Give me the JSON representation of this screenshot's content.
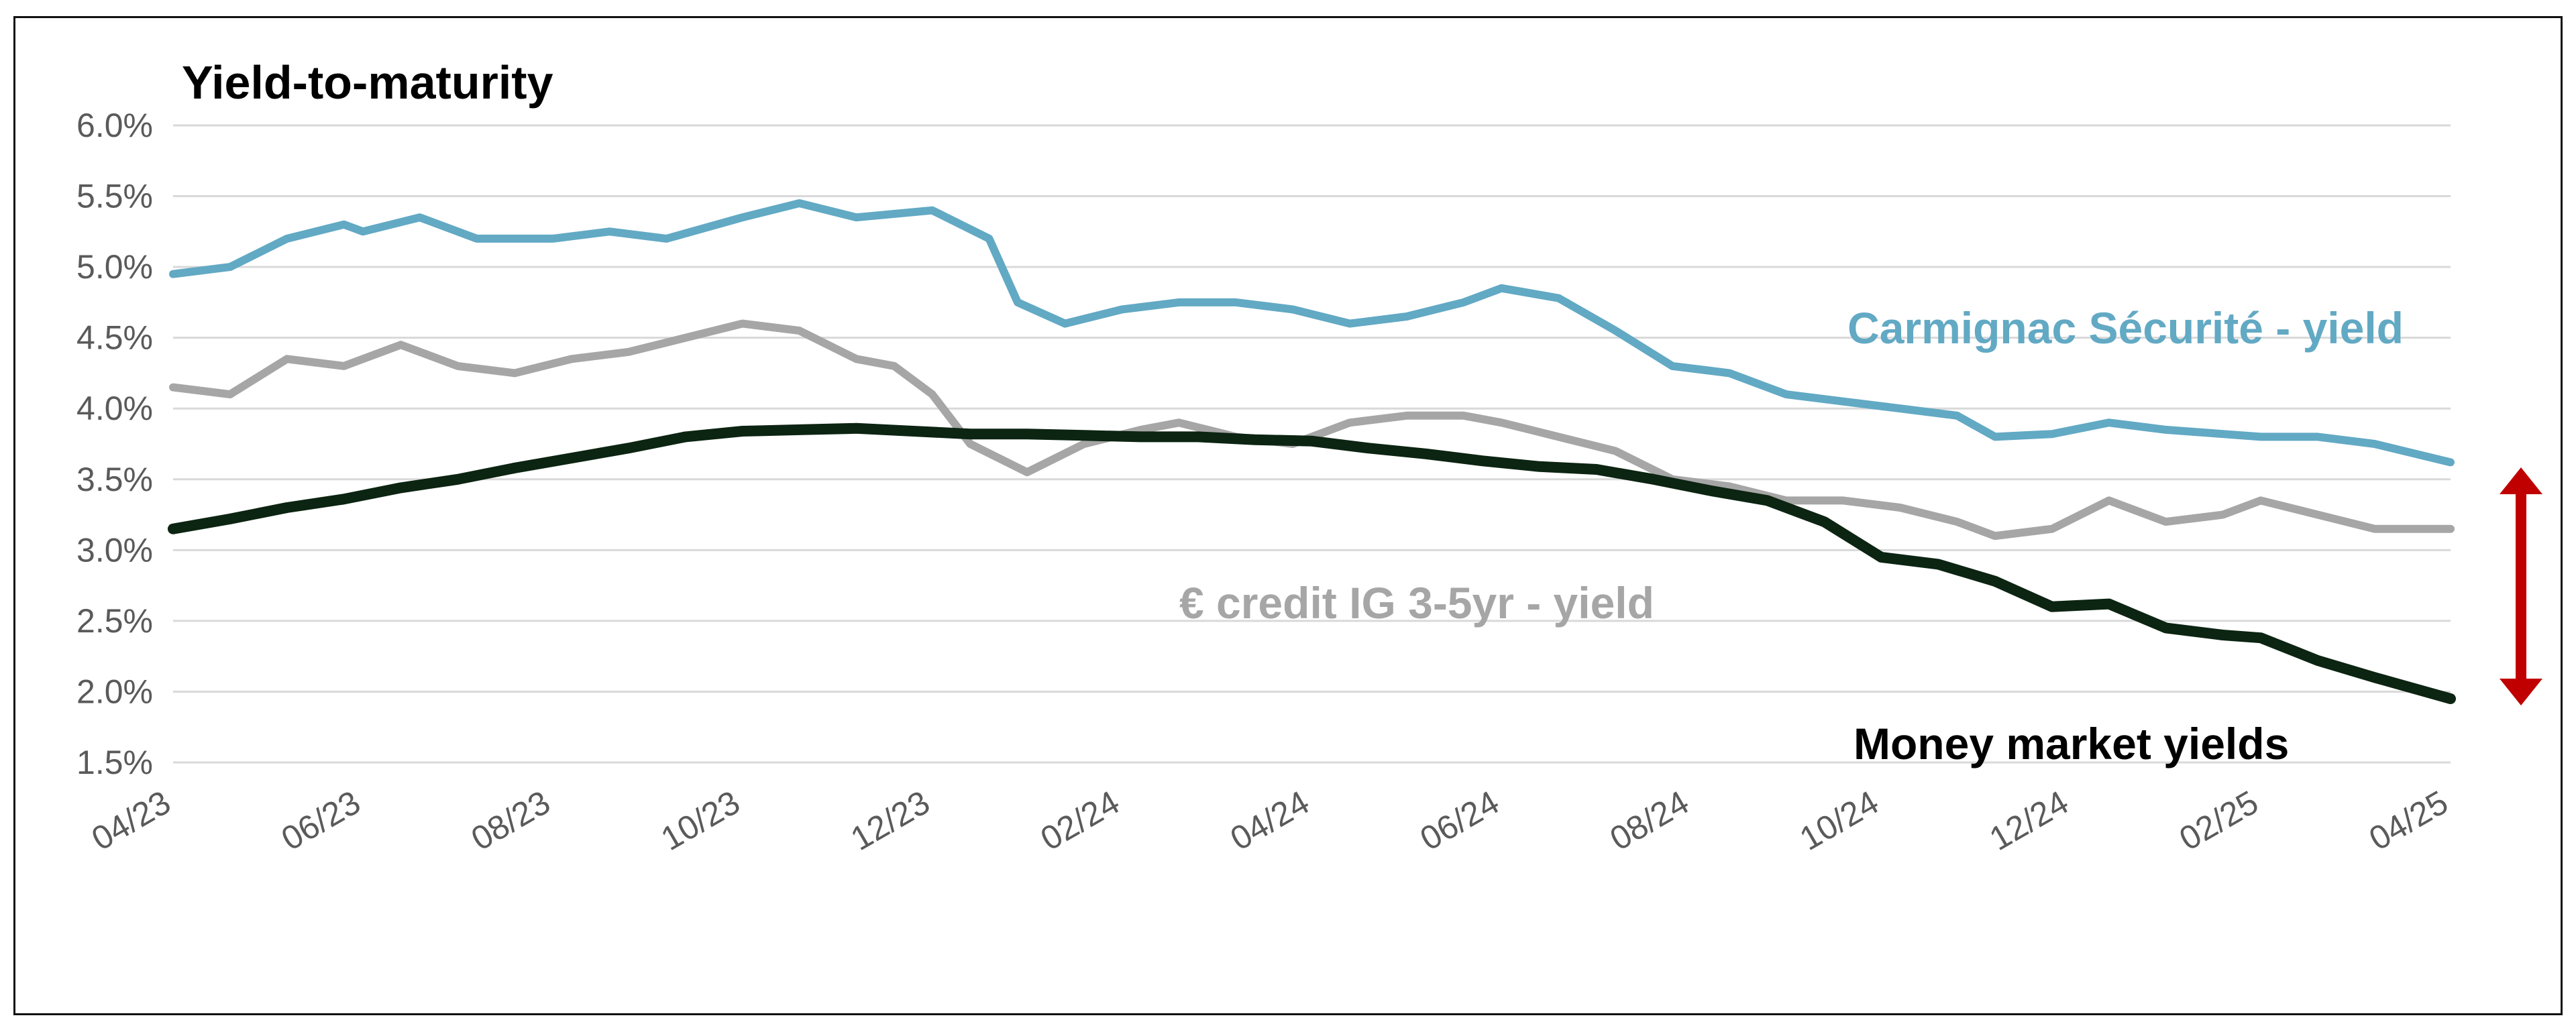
{
  "chart_data": {
    "type": "line",
    "title": "Yield-to-maturity",
    "ylim": [
      1.5,
      6.0
    ],
    "y_ticks": [
      "6.0%",
      "5.5%",
      "5.0%",
      "4.5%",
      "4.0%",
      "3.5%",
      "3.0%",
      "2.5%",
      "2.0%",
      "1.5%"
    ],
    "x_ticks": [
      "04/23",
      "06/23",
      "08/23",
      "10/23",
      "12/23",
      "02/24",
      "04/24",
      "06/24",
      "08/24",
      "10/24",
      "12/24",
      "02/25",
      "04/25"
    ],
    "grid": true,
    "series": [
      {
        "name": "Carmignac Sécurité - yield",
        "color": "#62a9c4",
        "points": [
          [
            0,
            4.95
          ],
          [
            0.3,
            5.0
          ],
          [
            0.6,
            5.2
          ],
          [
            0.9,
            5.3
          ],
          [
            1.0,
            5.25
          ],
          [
            1.3,
            5.35
          ],
          [
            1.6,
            5.2
          ],
          [
            2.0,
            5.2
          ],
          [
            2.3,
            5.25
          ],
          [
            2.6,
            5.2
          ],
          [
            3.0,
            5.35
          ],
          [
            3.3,
            5.45
          ],
          [
            3.6,
            5.35
          ],
          [
            4.0,
            5.4
          ],
          [
            4.3,
            5.2
          ],
          [
            4.45,
            4.75
          ],
          [
            4.7,
            4.6
          ],
          [
            5.0,
            4.7
          ],
          [
            5.3,
            4.75
          ],
          [
            5.6,
            4.75
          ],
          [
            5.9,
            4.7
          ],
          [
            6.2,
            4.6
          ],
          [
            6.5,
            4.65
          ],
          [
            6.8,
            4.75
          ],
          [
            7.0,
            4.85
          ],
          [
            7.3,
            4.78
          ],
          [
            7.6,
            4.55
          ],
          [
            7.9,
            4.3
          ],
          [
            8.2,
            4.25
          ],
          [
            8.5,
            4.1
          ],
          [
            8.8,
            4.05
          ],
          [
            9.1,
            4.0
          ],
          [
            9.4,
            3.95
          ],
          [
            9.6,
            3.8
          ],
          [
            9.9,
            3.82
          ],
          [
            10.2,
            3.9
          ],
          [
            10.5,
            3.85
          ],
          [
            10.8,
            3.82
          ],
          [
            11.0,
            3.8
          ],
          [
            11.3,
            3.8
          ],
          [
            11.6,
            3.75
          ],
          [
            12.0,
            3.62
          ]
        ]
      },
      {
        "name": "€ credit IG 3-5yr - yield",
        "color": "#a6a6a6",
        "points": [
          [
            0,
            4.15
          ],
          [
            0.3,
            4.1
          ],
          [
            0.6,
            4.35
          ],
          [
            0.9,
            4.3
          ],
          [
            1.2,
            4.45
          ],
          [
            1.5,
            4.3
          ],
          [
            1.8,
            4.25
          ],
          [
            2.1,
            4.35
          ],
          [
            2.4,
            4.4
          ],
          [
            2.7,
            4.5
          ],
          [
            3.0,
            4.6
          ],
          [
            3.3,
            4.55
          ],
          [
            3.6,
            4.35
          ],
          [
            3.8,
            4.3
          ],
          [
            4.0,
            4.1
          ],
          [
            4.2,
            3.75
          ],
          [
            4.5,
            3.55
          ],
          [
            4.8,
            3.75
          ],
          [
            5.1,
            3.85
          ],
          [
            5.3,
            3.9
          ],
          [
            5.6,
            3.8
          ],
          [
            5.9,
            3.75
          ],
          [
            6.2,
            3.9
          ],
          [
            6.5,
            3.95
          ],
          [
            6.8,
            3.95
          ],
          [
            7.0,
            3.9
          ],
          [
            7.3,
            3.8
          ],
          [
            7.6,
            3.7
          ],
          [
            7.9,
            3.5
          ],
          [
            8.2,
            3.45
          ],
          [
            8.5,
            3.35
          ],
          [
            8.8,
            3.35
          ],
          [
            9.1,
            3.3
          ],
          [
            9.4,
            3.2
          ],
          [
            9.6,
            3.1
          ],
          [
            9.9,
            3.15
          ],
          [
            10.2,
            3.35
          ],
          [
            10.5,
            3.2
          ],
          [
            10.8,
            3.25
          ],
          [
            11.0,
            3.35
          ],
          [
            11.3,
            3.25
          ],
          [
            11.6,
            3.15
          ],
          [
            12.0,
            3.15
          ]
        ]
      },
      {
        "name": "Money market yields",
        "color": "#0c2412",
        "points": [
          [
            0,
            3.15
          ],
          [
            0.3,
            3.22
          ],
          [
            0.6,
            3.3
          ],
          [
            0.9,
            3.36
          ],
          [
            1.2,
            3.44
          ],
          [
            1.5,
            3.5
          ],
          [
            1.8,
            3.58
          ],
          [
            2.1,
            3.65
          ],
          [
            2.4,
            3.72
          ],
          [
            2.7,
            3.8
          ],
          [
            3.0,
            3.84
          ],
          [
            3.3,
            3.85
          ],
          [
            3.6,
            3.86
          ],
          [
            3.9,
            3.84
          ],
          [
            4.2,
            3.82
          ],
          [
            4.5,
            3.82
          ],
          [
            4.8,
            3.81
          ],
          [
            5.1,
            3.8
          ],
          [
            5.4,
            3.8
          ],
          [
            5.7,
            3.78
          ],
          [
            6.0,
            3.77
          ],
          [
            6.3,
            3.72
          ],
          [
            6.6,
            3.68
          ],
          [
            6.9,
            3.63
          ],
          [
            7.2,
            3.59
          ],
          [
            7.5,
            3.57
          ],
          [
            7.8,
            3.5
          ],
          [
            8.1,
            3.42
          ],
          [
            8.4,
            3.35
          ],
          [
            8.7,
            3.2
          ],
          [
            9.0,
            2.95
          ],
          [
            9.3,
            2.9
          ],
          [
            9.6,
            2.78
          ],
          [
            9.9,
            2.6
          ],
          [
            10.2,
            2.62
          ],
          [
            10.5,
            2.45
          ],
          [
            10.8,
            2.4
          ],
          [
            11.0,
            2.38
          ],
          [
            11.3,
            2.22
          ],
          [
            11.6,
            2.1
          ],
          [
            12.0,
            1.95
          ]
        ]
      }
    ],
    "label_carmignac": "Carmignac Sécurité - yield",
    "label_credit": "€ credit IG 3-5yr - yield",
    "label_money": "Money market yields",
    "arrow_color": "#c00000"
  }
}
